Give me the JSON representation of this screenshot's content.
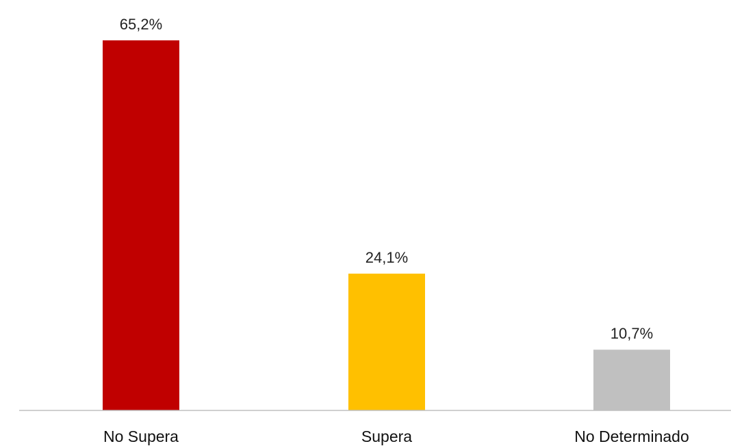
{
  "chart_data": {
    "type": "bar",
    "categories": [
      "No Supera",
      "Supera",
      "No Determinado"
    ],
    "values": [
      65.2,
      24.1,
      10.7
    ],
    "data_labels": [
      "65,2%",
      "24,1%",
      "10,7%"
    ],
    "colors": [
      "#c00000",
      "#ffc000",
      "#c0c0c0"
    ],
    "axis_color": "#bfbfbf",
    "ylim": [
      0,
      65.2
    ],
    "grid": false,
    "title": "",
    "xlabel": "",
    "ylabel": ""
  }
}
